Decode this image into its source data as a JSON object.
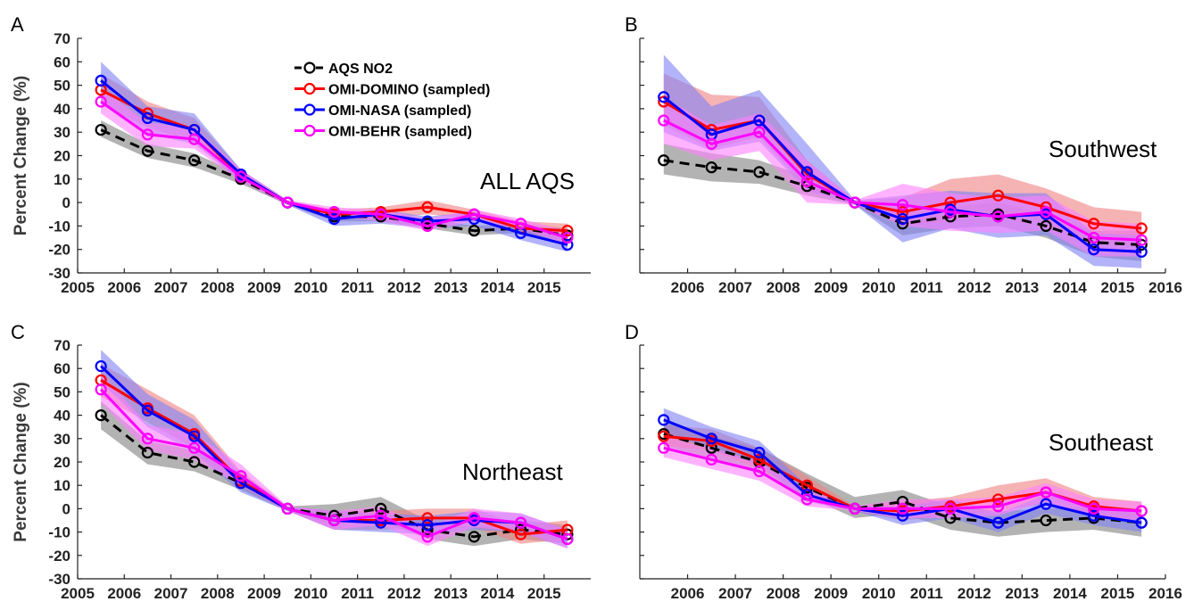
{
  "figure": {
    "legend": [
      {
        "label": "AQS NO2",
        "color": "#000000",
        "dashed": true
      },
      {
        "label": "OMI-DOMINO (sampled)",
        "color": "#ff0000",
        "dashed": false
      },
      {
        "label": "OMI-NASA (sampled)",
        "color": "#0000ff",
        "dashed": false
      },
      {
        "label": "OMI-BEHR (sampled)",
        "color": "#ff00ff",
        "dashed": false
      }
    ],
    "band_colors": {
      "AQS NO2": "#808080",
      "OMI-DOMINO (sampled)": "#f08080",
      "OMI-NASA (sampled)": "#8080f5",
      "OMI-BEHR (sampled)": "#ff80ff"
    }
  },
  "chart_data": [
    {
      "type": "line",
      "panel_letter": "A",
      "region_label": "ALL AQS",
      "ylabel": "Percent Change (%)",
      "xlim": [
        2005,
        2016
      ],
      "ylim": [
        -30,
        70
      ],
      "xticks": [
        2005,
        2006,
        2007,
        2008,
        2009,
        2010,
        2011,
        2012,
        2013,
        2014,
        2015
      ],
      "yticks": [
        70,
        60,
        50,
        40,
        30,
        20,
        10,
        0,
        -10,
        -20,
        -30
      ],
      "x": [
        2005.5,
        2006.5,
        2007.5,
        2008.5,
        2009.5,
        2010.5,
        2011.5,
        2012.5,
        2013.5,
        2014.5,
        2015.5
      ],
      "series": [
        {
          "name": "AQS NO2",
          "values": [
            31,
            22,
            18,
            10,
            0,
            -6,
            -6,
            -9,
            -12,
            -11,
            -14
          ],
          "band": [
            [
              28,
              35
            ],
            [
              19,
              25
            ],
            [
              15,
              21
            ],
            [
              8,
              12
            ],
            [
              -1,
              1
            ],
            [
              -8,
              -4
            ],
            [
              -8,
              -4
            ],
            [
              -11,
              -7
            ],
            [
              -14,
              -10
            ],
            [
              -13,
              -9
            ],
            [
              -17,
              -11
            ]
          ]
        },
        {
          "name": "OMI-DOMINO (sampled)",
          "values": [
            48,
            38,
            31,
            11,
            0,
            -5,
            -4,
            -2,
            -5,
            -11,
            -12
          ],
          "band": [
            [
              42,
              55
            ],
            [
              32,
              43
            ],
            [
              26,
              36
            ],
            [
              9,
              14
            ],
            [
              -1,
              1
            ],
            [
              -7,
              -3
            ],
            [
              -7,
              -2
            ],
            [
              -5,
              1
            ],
            [
              -7,
              -3
            ],
            [
              -13,
              -8
            ],
            [
              -16,
              -9
            ]
          ]
        },
        {
          "name": "OMI-NASA (sampled)",
          "values": [
            52,
            36,
            31,
            12,
            0,
            -7,
            -5,
            -8,
            -7,
            -13,
            -18
          ],
          "band": [
            [
              44,
              60
            ],
            [
              29,
              41
            ],
            [
              25,
              38
            ],
            [
              9,
              14
            ],
            [
              -1,
              1
            ],
            [
              -10,
              -4
            ],
            [
              -9,
              -3
            ],
            [
              -11,
              -6
            ],
            [
              -10,
              -4
            ],
            [
              -16,
              -10
            ],
            [
              -21,
              -15
            ]
          ]
        },
        {
          "name": "OMI-BEHR (sampled)",
          "values": [
            43,
            29,
            27,
            11,
            0,
            -4,
            -5,
            -10,
            -5,
            -9,
            -15
          ],
          "band": [
            [
              38,
              49
            ],
            [
              24,
              34
            ],
            [
              23,
              32
            ],
            [
              9,
              14
            ],
            [
              -1,
              1
            ],
            [
              -6,
              -2
            ],
            [
              -8,
              -3
            ],
            [
              -12,
              -7
            ],
            [
              -8,
              -3
            ],
            [
              -11,
              -7
            ],
            [
              -18,
              -12
            ]
          ]
        }
      ]
    },
    {
      "type": "line",
      "panel_letter": "B",
      "region_label": "Southwest",
      "ylabel": "",
      "xlim": [
        2005,
        2016
      ],
      "ylim": [
        -30,
        70
      ],
      "xticks": [
        2006,
        2007,
        2008,
        2009,
        2010,
        2011,
        2012,
        2013,
        2014,
        2015,
        2016
      ],
      "yticks": [],
      "x": [
        2005.5,
        2006.5,
        2007.5,
        2008.5,
        2009.5,
        2010.5,
        2011.5,
        2012.5,
        2013.5,
        2014.5,
        2015.5
      ],
      "series": [
        {
          "name": "AQS NO2",
          "values": [
            18,
            15,
            13,
            7,
            0,
            -9,
            -6,
            -5,
            -10,
            -17,
            -18
          ],
          "band": [
            [
              12,
              25
            ],
            [
              9,
              21
            ],
            [
              8,
              18
            ],
            [
              3,
              11
            ],
            [
              -1,
              1
            ],
            [
              -14,
              -5
            ],
            [
              -11,
              -2
            ],
            [
              -10,
              0
            ],
            [
              -15,
              -5
            ],
            [
              -23,
              -12
            ],
            [
              -25,
              -12
            ]
          ]
        },
        {
          "name": "OMI-DOMINO (sampled)",
          "values": [
            43,
            31,
            35,
            12,
            0,
            -4,
            0,
            3,
            -2,
            -9,
            -11
          ],
          "band": [
            [
              33,
              55
            ],
            [
              23,
              46
            ],
            [
              28,
              45
            ],
            [
              6,
              18
            ],
            [
              -1,
              1
            ],
            [
              -10,
              2
            ],
            [
              -8,
              10
            ],
            [
              -4,
              12
            ],
            [
              -8,
              6
            ],
            [
              -17,
              -2
            ],
            [
              -18,
              -4
            ]
          ]
        },
        {
          "name": "OMI-NASA (sampled)",
          "values": [
            45,
            29,
            35,
            13,
            0,
            -7,
            -3,
            -6,
            -5,
            -20,
            -21
          ],
          "band": [
            [
              30,
              63
            ],
            [
              22,
              41
            ],
            [
              26,
              48
            ],
            [
              5,
              25
            ],
            [
              -1,
              1
            ],
            [
              -17,
              3
            ],
            [
              -11,
              5
            ],
            [
              -15,
              4
            ],
            [
              -14,
              4
            ],
            [
              -27,
              -13
            ],
            [
              -28,
              -14
            ]
          ]
        },
        {
          "name": "OMI-BEHR (sampled)",
          "values": [
            35,
            25,
            30,
            9,
            0,
            -1,
            -4,
            -6,
            -4,
            -15,
            -16
          ],
          "band": [
            [
              25,
              45
            ],
            [
              18,
              33
            ],
            [
              22,
              38
            ],
            [
              0,
              18
            ],
            [
              -1,
              1
            ],
            [
              -10,
              8
            ],
            [
              -12,
              4
            ],
            [
              -13,
              2
            ],
            [
              -12,
              3
            ],
            [
              -23,
              -8
            ],
            [
              -23,
              -9
            ]
          ]
        }
      ]
    },
    {
      "type": "line",
      "panel_letter": "C",
      "region_label": "Northeast",
      "ylabel": "Percent Change (%)",
      "xlim": [
        2005,
        2016
      ],
      "ylim": [
        -30,
        70
      ],
      "xticks": [
        2005,
        2006,
        2007,
        2008,
        2009,
        2010,
        2011,
        2012,
        2013,
        2014,
        2015
      ],
      "yticks": [
        70,
        60,
        50,
        40,
        30,
        20,
        10,
        0,
        -10,
        -20,
        -30
      ],
      "x": [
        2005.5,
        2006.5,
        2007.5,
        2008.5,
        2009.5,
        2010.5,
        2011.5,
        2012.5,
        2013.5,
        2014.5,
        2015.5
      ],
      "series": [
        {
          "name": "AQS NO2",
          "values": [
            40,
            24,
            20,
            11,
            0,
            -3,
            0,
            -9,
            -12,
            -9,
            -11
          ],
          "band": [
            [
              34,
              46
            ],
            [
              19,
              29
            ],
            [
              16,
              25
            ],
            [
              8,
              15
            ],
            [
              -1,
              1
            ],
            [
              -7,
              2
            ],
            [
              -5,
              5
            ],
            [
              -13,
              -5
            ],
            [
              -16,
              -8
            ],
            [
              -13,
              -5
            ],
            [
              -15,
              -7
            ]
          ]
        },
        {
          "name": "OMI-DOMINO (sampled)",
          "values": [
            55,
            43,
            32,
            12,
            0,
            -5,
            -5,
            -4,
            -4,
            -11,
            -9
          ],
          "band": [
            [
              48,
              62
            ],
            [
              37,
              51
            ],
            [
              26,
              40
            ],
            [
              9,
              16
            ],
            [
              -1,
              1
            ],
            [
              -9,
              -1
            ],
            [
              -9,
              -1
            ],
            [
              -8,
              0
            ],
            [
              -8,
              0
            ],
            [
              -15,
              -7
            ],
            [
              -13,
              -5
            ]
          ]
        },
        {
          "name": "OMI-NASA (sampled)",
          "values": [
            61,
            42,
            31,
            11,
            0,
            -5,
            -6,
            -7,
            -5,
            -6,
            -13
          ],
          "band": [
            [
              54,
              68
            ],
            [
              35,
              49
            ],
            [
              24,
              38
            ],
            [
              7,
              15
            ],
            [
              -1,
              1
            ],
            [
              -9,
              -1
            ],
            [
              -10,
              -2
            ],
            [
              -11,
              -3
            ],
            [
              -9,
              -1
            ],
            [
              -10,
              -2
            ],
            [
              -17,
              -9
            ]
          ]
        },
        {
          "name": "OMI-BEHR (sampled)",
          "values": [
            51,
            30,
            26,
            14,
            0,
            -5,
            -3,
            -12,
            -4,
            -6,
            -13
          ],
          "band": [
            [
              45,
              58
            ],
            [
              25,
              36
            ],
            [
              21,
              32
            ],
            [
              10,
              19
            ],
            [
              -1,
              1
            ],
            [
              -9,
              -1
            ],
            [
              -7,
              1
            ],
            [
              -16,
              -8
            ],
            [
              -8,
              0
            ],
            [
              -10,
              -2
            ],
            [
              -17,
              -9
            ]
          ]
        }
      ]
    },
    {
      "type": "line",
      "panel_letter": "D",
      "region_label": "Southeast",
      "ylabel": "",
      "xlim": [
        2005,
        2016
      ],
      "ylim": [
        -30,
        70
      ],
      "xticks": [
        2006,
        2007,
        2008,
        2009,
        2010,
        2011,
        2012,
        2013,
        2014,
        2015,
        2016
      ],
      "yticks": [],
      "x": [
        2005.5,
        2006.5,
        2007.5,
        2008.5,
        2009.5,
        2010.5,
        2011.5,
        2012.5,
        2013.5,
        2014.5,
        2015.5
      ],
      "series": [
        {
          "name": "AQS NO2",
          "values": [
            32,
            26,
            20,
            9,
            0,
            3,
            -4,
            -6,
            -5,
            -4,
            -6
          ],
          "band": [
            [
              27,
              37
            ],
            [
              21,
              31
            ],
            [
              15,
              26
            ],
            [
              5,
              15
            ],
            [
              -4,
              5
            ],
            [
              -2,
              8
            ],
            [
              -9,
              1
            ],
            [
              -12,
              -1
            ],
            [
              -10,
              0
            ],
            [
              -9,
              1
            ],
            [
              -12,
              0
            ]
          ]
        },
        {
          "name": "OMI-DOMINO (sampled)",
          "values": [
            31,
            29,
            21,
            10,
            0,
            -1,
            1,
            4,
            7,
            1,
            -1
          ],
          "band": [
            [
              27,
              36
            ],
            [
              25,
              34
            ],
            [
              17,
              26
            ],
            [
              7,
              14
            ],
            [
              -1,
              1
            ],
            [
              -5,
              3
            ],
            [
              -3,
              5
            ],
            [
              -1,
              10
            ],
            [
              2,
              13
            ],
            [
              -3,
              5
            ],
            [
              -5,
              3
            ]
          ]
        },
        {
          "name": "OMI-NASA (sampled)",
          "values": [
            38,
            30,
            24,
            6,
            0,
            -3,
            0,
            -6,
            2,
            -3,
            -6
          ],
          "band": [
            [
              33,
              43
            ],
            [
              25,
              35
            ],
            [
              19,
              29
            ],
            [
              3,
              10
            ],
            [
              -1,
              1
            ],
            [
              -7,
              1
            ],
            [
              -4,
              4
            ],
            [
              -10,
              -2
            ],
            [
              -2,
              6
            ],
            [
              -7,
              1
            ],
            [
              -10,
              -2
            ]
          ]
        },
        {
          "name": "OMI-BEHR (sampled)",
          "values": [
            26,
            21,
            16,
            4,
            0,
            0,
            0,
            1,
            7,
            0,
            -1
          ],
          "band": [
            [
              22,
              31
            ],
            [
              17,
              26
            ],
            [
              12,
              20
            ],
            [
              1,
              8
            ],
            [
              -1,
              1
            ],
            [
              -4,
              4
            ],
            [
              -4,
              4
            ],
            [
              -3,
              5
            ],
            [
              3,
              11
            ],
            [
              -4,
              4
            ],
            [
              -5,
              3
            ]
          ]
        }
      ]
    }
  ]
}
